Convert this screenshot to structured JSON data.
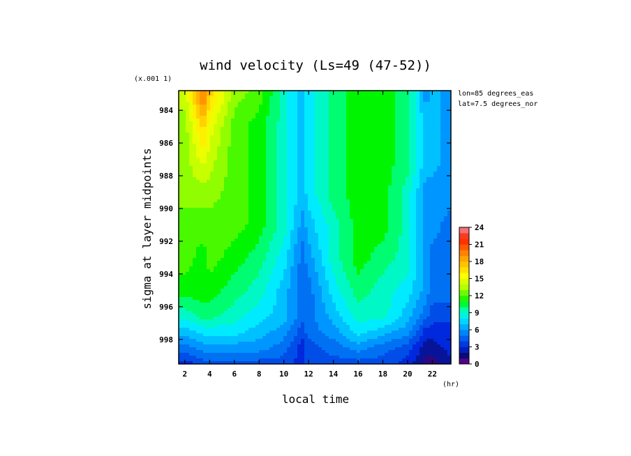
{
  "chart_data": {
    "type": "heatmap",
    "title": "wind velocity (Ls=49 (47-52))",
    "xlabel": "local time",
    "ylabel": "sigma at layer midpoints",
    "x_unit": "(hr)",
    "y_scale_note": "(x.001 1)",
    "annotations": [
      "lon=85 degrees_eas",
      "lat=7.5 degrees_nor"
    ],
    "xlim": [
      1.5,
      23.5
    ],
    "ylim": [
      999.5,
      982.8
    ],
    "x_ticks": [
      2,
      4,
      6,
      8,
      10,
      12,
      14,
      16,
      18,
      20,
      22
    ],
    "y_ticks": [
      984,
      986,
      988,
      990,
      992,
      994,
      996,
      998
    ],
    "x": [
      2,
      3.5,
      4,
      6,
      8,
      10,
      11.5,
      12,
      14,
      16,
      18,
      20,
      21.5,
      22,
      23.5
    ],
    "y": [
      983,
      985,
      987,
      989,
      991,
      993,
      995,
      996.5,
      997.5,
      998.5,
      999.5
    ],
    "values": [
      [
        14,
        20,
        17,
        13,
        12,
        9,
        7,
        8,
        10,
        11,
        11,
        10,
        6,
        7,
        6
      ],
      [
        13,
        17,
        15,
        12,
        11,
        9,
        7,
        8,
        10,
        11,
        11,
        10,
        7,
        7,
        6
      ],
      [
        13,
        15,
        14,
        12,
        11,
        9,
        7,
        8,
        10,
        11,
        11,
        10,
        7,
        7,
        6
      ],
      [
        13,
        13,
        13,
        12,
        11,
        9,
        7,
        8,
        10,
        11,
        11,
        9,
        6,
        6,
        6
      ],
      [
        12,
        12,
        12,
        12,
        11,
        9,
        6,
        7,
        9,
        11,
        11,
        9,
        6,
        6,
        5
      ],
      [
        12,
        11,
        12,
        11,
        10,
        8,
        5,
        6,
        9,
        11,
        10,
        9,
        6,
        5,
        5
      ],
      [
        11,
        11,
        11,
        10,
        9,
        7,
        5,
        5,
        8,
        10,
        9,
        8,
        6,
        5,
        5
      ],
      [
        9,
        10,
        10,
        9,
        8,
        7,
        5,
        5,
        7,
        9,
        9,
        7,
        5,
        4,
        4
      ],
      [
        7,
        8,
        8,
        8,
        7,
        6,
        4,
        5,
        6,
        8,
        7,
        6,
        3,
        3,
        3
      ],
      [
        5,
        6,
        6,
        6,
        6,
        5,
        3,
        4,
        5,
        6,
        5,
        4,
        2,
        2,
        3
      ],
      [
        3,
        4,
        4,
        4,
        4,
        4,
        3,
        4,
        4,
        4,
        4,
        3,
        1,
        1,
        2
      ]
    ],
    "colorbar": {
      "ticks": [
        0,
        3,
        6,
        9,
        12,
        15,
        18,
        21,
        24
      ],
      "range": [
        0,
        24
      ]
    }
  }
}
